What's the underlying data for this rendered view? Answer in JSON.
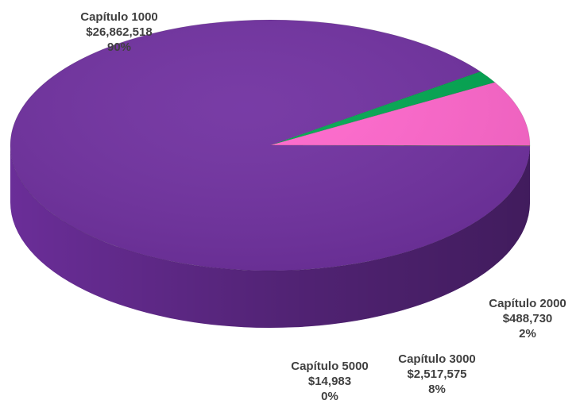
{
  "chart_data": {
    "type": "pie",
    "style": "3d",
    "start_angle_deg": -36,
    "direction": "clockwise",
    "slices": [
      {
        "label": "Capítulo 2000",
        "value": 488730,
        "value_label": "$488,730",
        "percent_label": "2%",
        "color": "#00A650"
      },
      {
        "label": "Capítulo 3000",
        "value": 2517575,
        "value_label": "$2,517,575",
        "percent_label": "8%",
        "color": "#FF66CC"
      },
      {
        "label": "Capítulo 5000",
        "value": 14983,
        "value_label": "$14,983",
        "percent_label": "0%",
        "color": "#2E7D32"
      },
      {
        "label": "Capítulo 1000",
        "value": 26862518,
        "value_label": "$26,862,518",
        "percent_label": "90%",
        "color": "#7030A0"
      }
    ]
  }
}
